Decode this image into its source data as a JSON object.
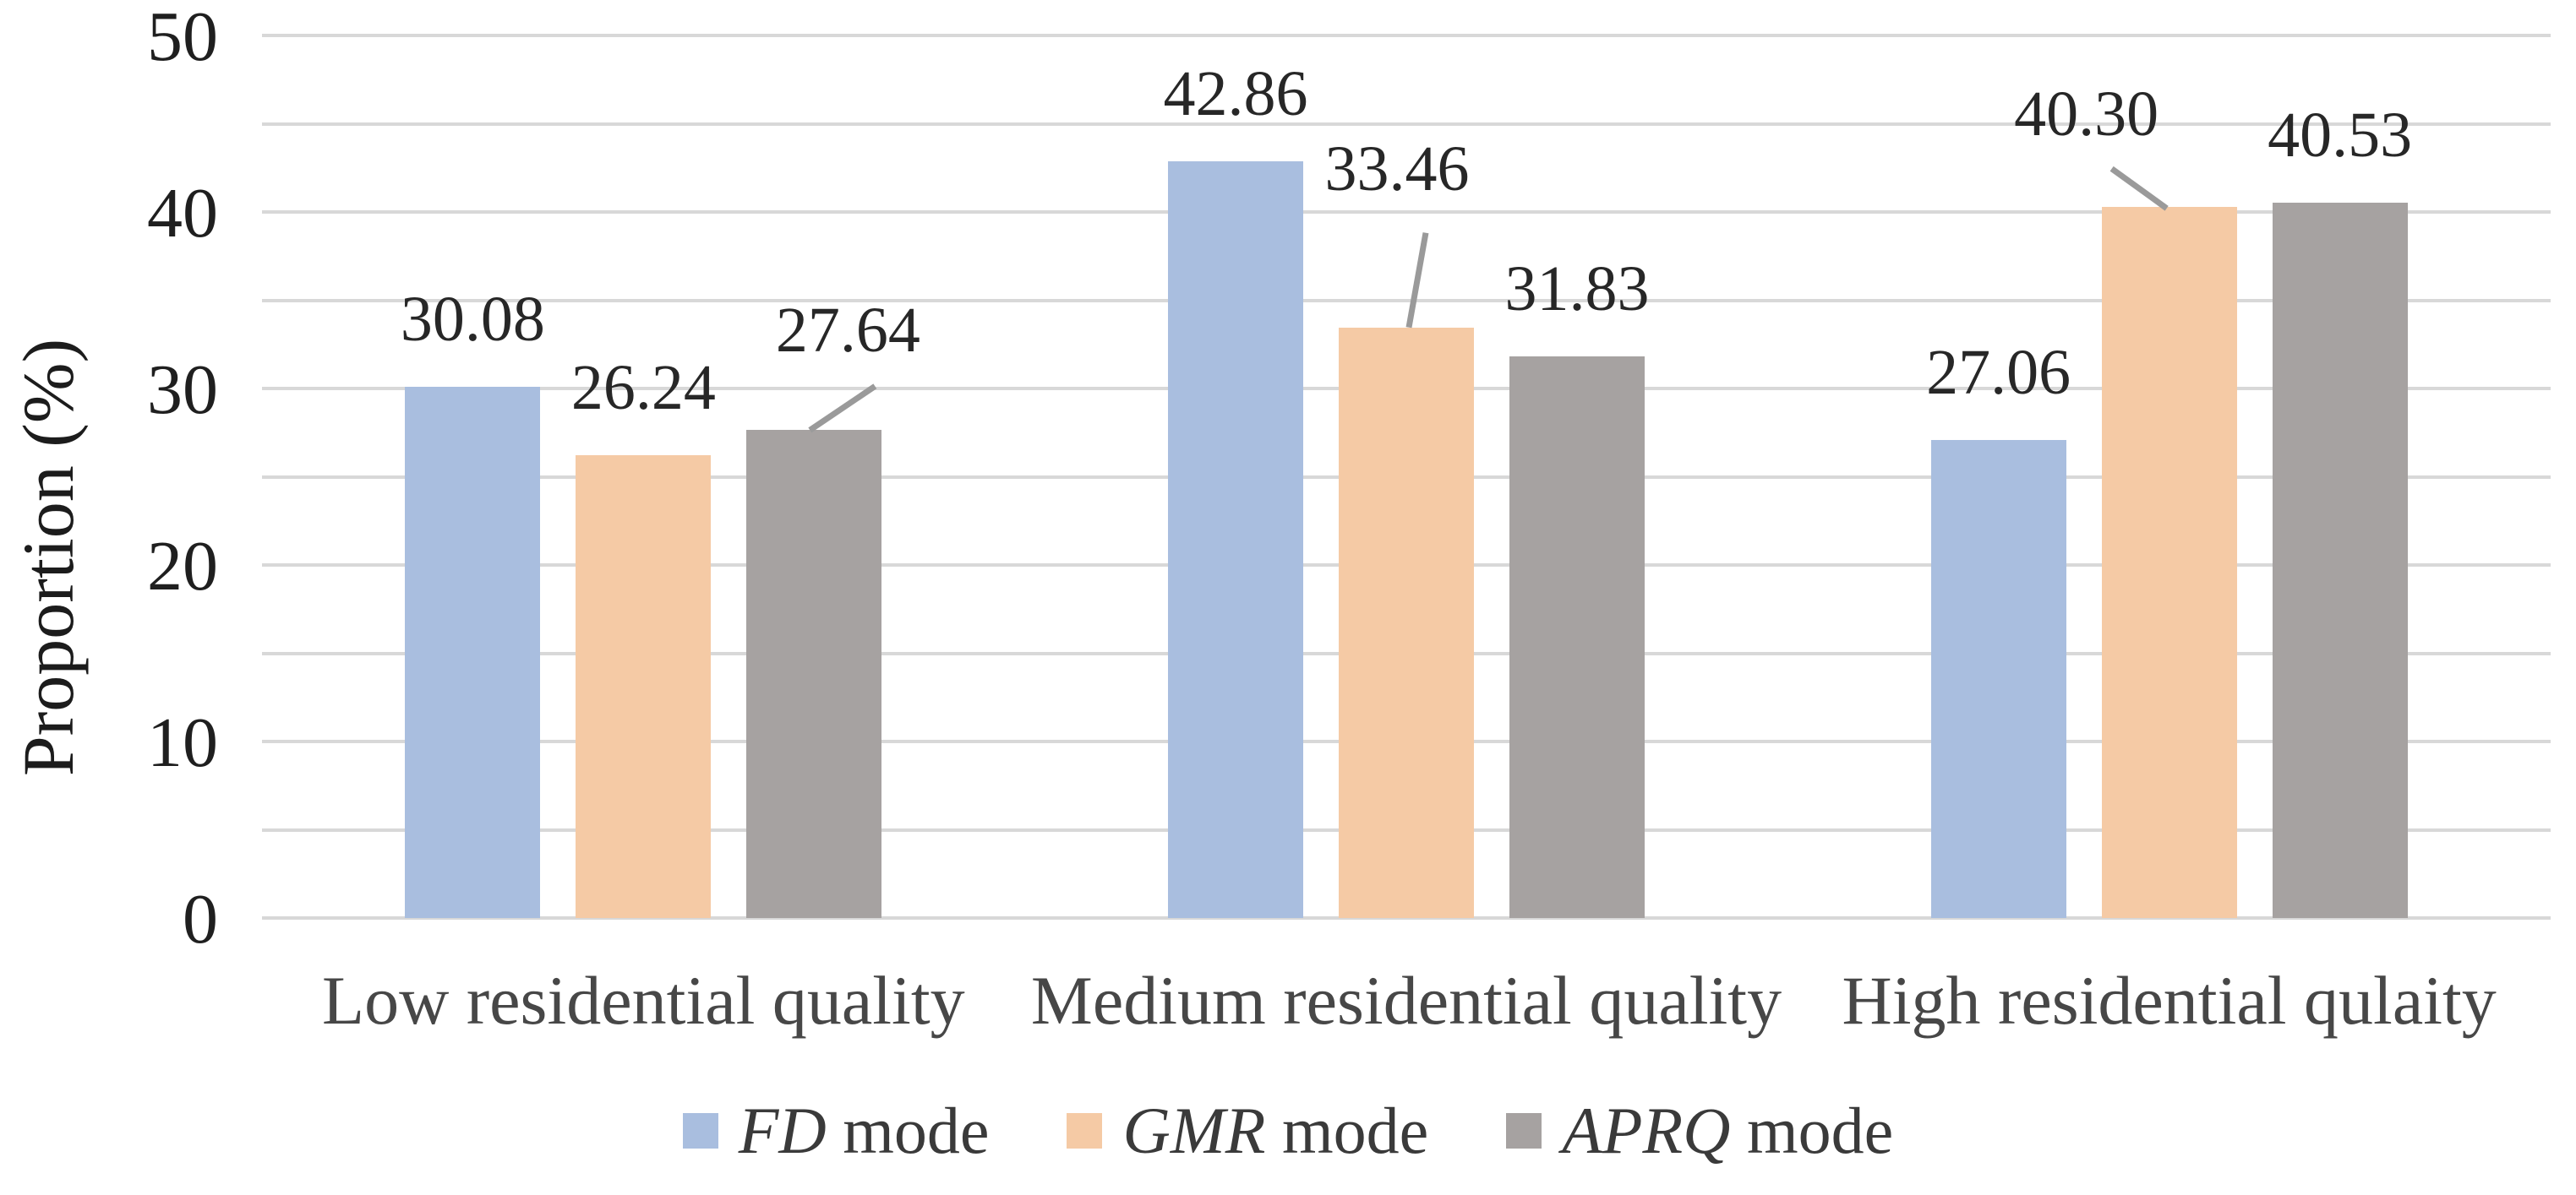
{
  "page": {
    "background": "#ffffff"
  },
  "chart_data": {
    "type": "bar",
    "title": "",
    "xlabel": "",
    "ylabel": "Proportion (%)",
    "ylim": [
      0,
      50
    ],
    "yticks": [
      0,
      10,
      20,
      30,
      40,
      50
    ],
    "gridline_step": 5,
    "grid": "horizontal",
    "legend_position": "bottom",
    "categories": [
      "Low residential quality",
      "Medium residential quality",
      "High residential qulaity"
    ],
    "series": [
      {
        "name": "FD mode",
        "name_italic": "FD",
        "name_rest": " mode",
        "color": "#a9bedf",
        "values": [
          30.08,
          42.86,
          27.06
        ],
        "labels": [
          "30.08",
          "42.86",
          "27.06"
        ]
      },
      {
        "name": "GMR mode",
        "name_italic": "GMR",
        "name_rest": " mode",
        "color": "#f5caa5",
        "values": [
          26.24,
          33.46,
          40.3
        ],
        "labels": [
          "26.24",
          "33.46",
          "40.30"
        ]
      },
      {
        "name": "APRQ mode",
        "name_italic": "APRQ",
        "name_rest": " mode",
        "color": "#a6a2a1",
        "values": [
          27.64,
          31.83,
          40.53
        ],
        "labels": [
          "27.64",
          "31.83",
          "40.53"
        ]
      }
    ],
    "label_callouts": [
      {
        "series": 2,
        "category": 0,
        "dx": 40,
        "raise": 38,
        "leader": [
          -5,
          0,
          72,
          -52
        ]
      },
      {
        "series": 1,
        "category": 1,
        "dx": -11,
        "raise": 108,
        "leader": [
          23,
          -112,
          3,
          0
        ]
      },
      {
        "series": 1,
        "category": 2,
        "dx": -98,
        "raise": 30,
        "leader": [
          -68,
          -45,
          -3,
          2
        ]
      }
    ],
    "colors": {
      "gridline": "#d8d8d8",
      "leader_line": "#9a9a9a",
      "tick_text": "#1f1f1f",
      "data_label_text": "#272727",
      "category_text": "#474747",
      "legend_text": "#3a3a3a"
    }
  }
}
